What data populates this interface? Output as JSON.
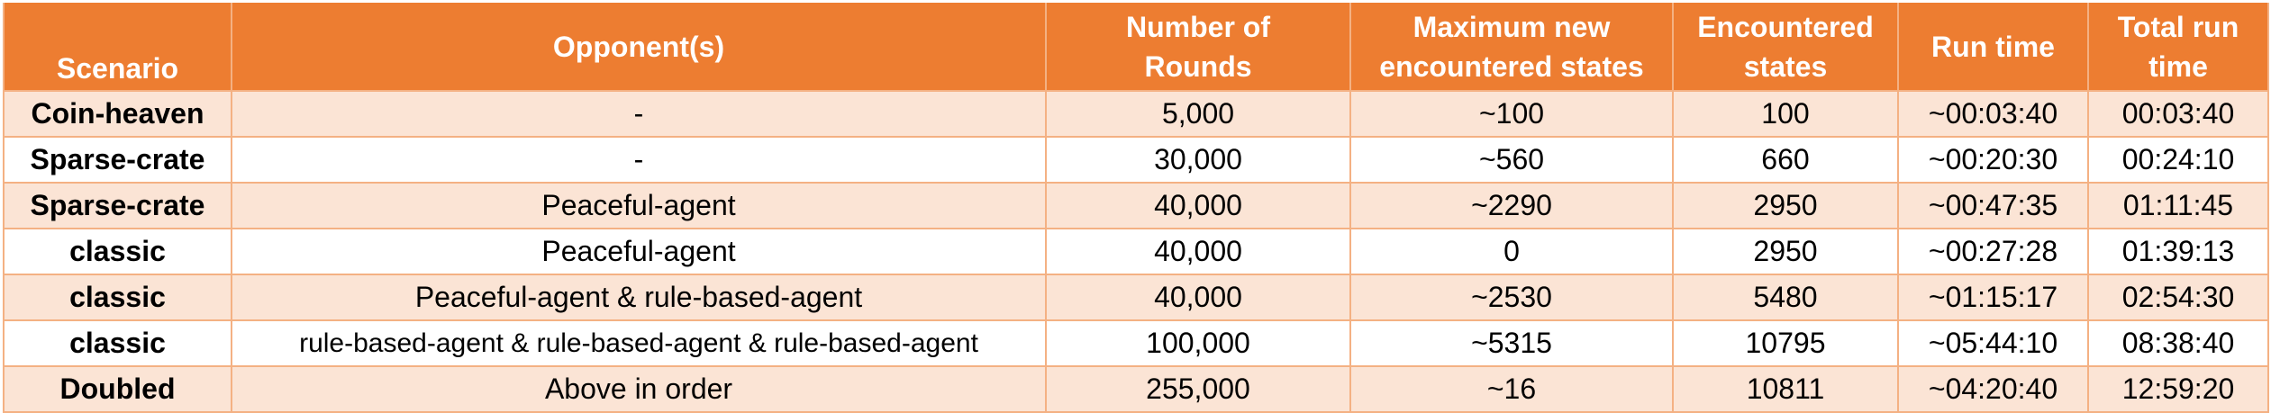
{
  "header": {
    "scenario": "Scenario",
    "opponents": "Opponent(s)",
    "rounds": [
      "Number of",
      "Rounds"
    ],
    "max_new": [
      "Maximum new",
      "encountered states"
    ],
    "encountered": [
      "Encountered",
      "states"
    ],
    "run_time": "Run time",
    "total_run_time": [
      "Total run",
      "time"
    ]
  },
  "rows": [
    {
      "scenario": "Coin-heaven",
      "opponents": "-",
      "rounds": "5,000",
      "max_new": "~100",
      "encountered": "100",
      "run_time": "~00:03:40",
      "total": "00:03:40"
    },
    {
      "scenario": "Sparse-crate",
      "opponents": "-",
      "rounds": "30,000",
      "max_new": "~560",
      "encountered": "660",
      "run_time": "~00:20:30",
      "total": "00:24:10"
    },
    {
      "scenario": "Sparse-crate",
      "opponents": "Peaceful-agent",
      "rounds": "40,000",
      "max_new": "~2290",
      "encountered": "2950",
      "run_time": "~00:47:35",
      "total": "01:11:45"
    },
    {
      "scenario": "classic",
      "opponents": "Peaceful-agent",
      "rounds": "40,000",
      "max_new": "0",
      "encountered": "2950",
      "run_time": "~00:27:28",
      "total": "01:39:13"
    },
    {
      "scenario": "classic",
      "opponents": "Peaceful-agent & rule-based-agent",
      "rounds": "40,000",
      "max_new": "~2530",
      "encountered": "5480",
      "run_time": "~01:15:17",
      "total": "02:54:30"
    },
    {
      "scenario": "classic",
      "opponents": "rule-based-agent & rule-based-agent & rule-based-agent",
      "rounds": "100,000",
      "max_new": "~5315",
      "encountered": "10795",
      "run_time": "~05:44:10",
      "total": "08:38:40"
    },
    {
      "scenario": "Doubled",
      "opponents": "Above in order",
      "rounds": "255,000",
      "max_new": "~16",
      "encountered": "10811",
      "run_time": "~04:20:40",
      "total": "12:59:20"
    }
  ],
  "colors": {
    "header_bg": "#ED7D31",
    "header_text": "#FFFFFF",
    "band_odd": "#FBE4D5",
    "band_even": "#FFFFFF",
    "border": "#F4B183"
  }
}
